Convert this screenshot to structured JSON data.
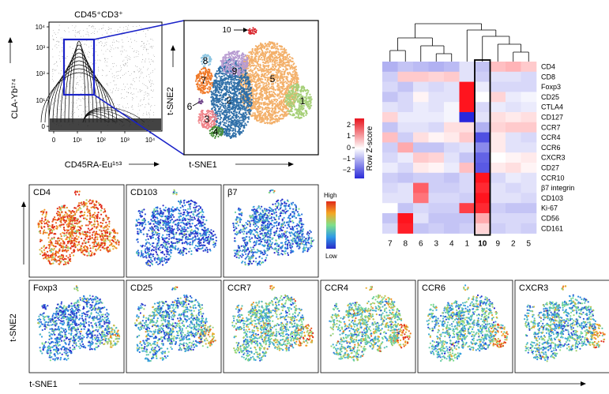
{
  "flow": {
    "gate_title": "CD45⁺CD3⁺",
    "x_label": "CD45RA-Eu¹⁵³",
    "y_label": "CLA-Yb¹⁷⁴",
    "x_ticks": [
      "0",
      "10¹",
      "10²",
      "10³",
      "10⁴"
    ],
    "y_ticks": [
      "0",
      "10¹",
      "10²",
      "10³",
      "10⁴"
    ]
  },
  "tsne_cluster": {
    "x_label": "t-SNE1",
    "y_label": "t-SNE2",
    "clusters": [
      "1",
      "2",
      "3",
      "4",
      "5",
      "6",
      "7",
      "8",
      "9",
      "10"
    ],
    "colors": {
      "1": "#a7d07a",
      "2": "#2f6fa8",
      "3": "#f0848a",
      "4": "#4a8f3a",
      "5": "#f3b06a",
      "6": "#6b3f87",
      "7": "#f07a2a",
      "8": "#8fc7e3",
      "9": "#b79bd1",
      "10": "#d9262e"
    }
  },
  "heatmap": {
    "legend_title": "Row Z-score",
    "legend_ticks": [
      "2",
      "1",
      "0",
      "−1",
      "−2"
    ],
    "highlight_col": "10",
    "chart_data": {
      "type": "heatmap",
      "columns": [
        "7",
        "8",
        "6",
        "3",
        "4",
        "1",
        "10",
        "9",
        "2",
        "5"
      ],
      "rows": [
        "CD4",
        "CD8",
        "Foxp3",
        "CD25",
        "CTLA4",
        "CD127",
        "CCR7",
        "CCR4",
        "CCR6",
        "CXCR3",
        "CD27",
        "CCR10",
        "β7 integrin",
        "CD103",
        "Ki-67",
        "CD56",
        "CD161"
      ],
      "zrange": [
        -2.5,
        2.5
      ],
      "values": [
        [
          -0.8,
          -0.6,
          -0.7,
          -0.8,
          -0.7,
          -0.3,
          -0.6,
          0.6,
          0.7,
          0.5
        ],
        [
          -0.5,
          0.5,
          0.5,
          0.4,
          0.5,
          -0.3,
          -0.5,
          -0.3,
          -0.3,
          -0.4
        ],
        [
          -0.4,
          -0.6,
          -0.3,
          -0.4,
          -0.3,
          2.6,
          -0.2,
          -0.4,
          -0.4,
          -0.4
        ],
        [
          -0.6,
          -0.4,
          0.1,
          -0.3,
          -0.3,
          2.5,
          0.0,
          0.4,
          -0.2,
          -0.1
        ],
        [
          -0.3,
          -0.4,
          -0.2,
          -0.3,
          -0.1,
          2.6,
          -0.4,
          -0.2,
          -0.3,
          -0.2
        ],
        [
          0.4,
          -0.2,
          -0.2,
          -0.2,
          -0.1,
          -2.8,
          -0.3,
          0.3,
          0.2,
          0.3
        ],
        [
          -0.6,
          -0.3,
          -0.3,
          -0.4,
          0.3,
          0.3,
          -0.8,
          0.4,
          0.5,
          0.5
        ],
        [
          0.6,
          -0.5,
          0.3,
          0.1,
          0.2,
          0.5,
          -1.8,
          0.2,
          -0.3,
          -0.4
        ],
        [
          -0.5,
          0.8,
          -0.6,
          -0.6,
          -0.4,
          -0.3,
          -1.2,
          0.2,
          -0.3,
          -0.3
        ],
        [
          -0.4,
          -0.2,
          0.5,
          0.4,
          -0.3,
          -0.6,
          -1.6,
          0.0,
          0.1,
          0.2
        ],
        [
          -0.2,
          -0.4,
          0.2,
          0.1,
          -0.2,
          0.6,
          -1.7,
          0.2,
          0.3,
          0.1
        ],
        [
          -0.5,
          -0.6,
          -0.5,
          -0.5,
          -0.6,
          -0.4,
          2.4,
          -0.4,
          -0.2,
          -0.3
        ],
        [
          -0.4,
          -0.3,
          1.5,
          -0.5,
          -0.5,
          -0.4,
          2.0,
          -0.3,
          -0.4,
          -0.3
        ],
        [
          -0.3,
          -0.3,
          1.3,
          -0.4,
          -0.4,
          -0.5,
          2.2,
          -0.3,
          -0.3,
          -0.4
        ],
        [
          0.0,
          -0.6,
          -0.4,
          -0.5,
          -0.5,
          1.8,
          2.0,
          -0.5,
          -0.6,
          -0.6
        ],
        [
          -0.6,
          2.2,
          -0.3,
          -0.6,
          -0.6,
          -0.6,
          0.8,
          -0.4,
          -0.4,
          -0.4
        ],
        [
          -0.4,
          2.1,
          -0.6,
          -0.5,
          -0.6,
          -0.5,
          0.4,
          -0.5,
          -0.4,
          -0.5
        ]
      ]
    }
  },
  "markers": {
    "x_label": "t-SNE1",
    "y_label": "t-SNE2",
    "colorbar_high": "High",
    "colorbar_low": "Low",
    "row1": [
      {
        "label": "CD4",
        "level": 0.85
      },
      {
        "label": "CD103",
        "level": 0.12
      },
      {
        "label": "β7",
        "level": 0.18
      }
    ],
    "row2": [
      {
        "label": "Foxp3",
        "level": 0.22
      },
      {
        "label": "CD25",
        "level": 0.3
      },
      {
        "label": "CCR7",
        "level": 0.42
      },
      {
        "label": "CCR4",
        "level": 0.45
      },
      {
        "label": "CCR6",
        "level": 0.38
      },
      {
        "label": "CXCR3",
        "level": 0.35
      }
    ]
  }
}
